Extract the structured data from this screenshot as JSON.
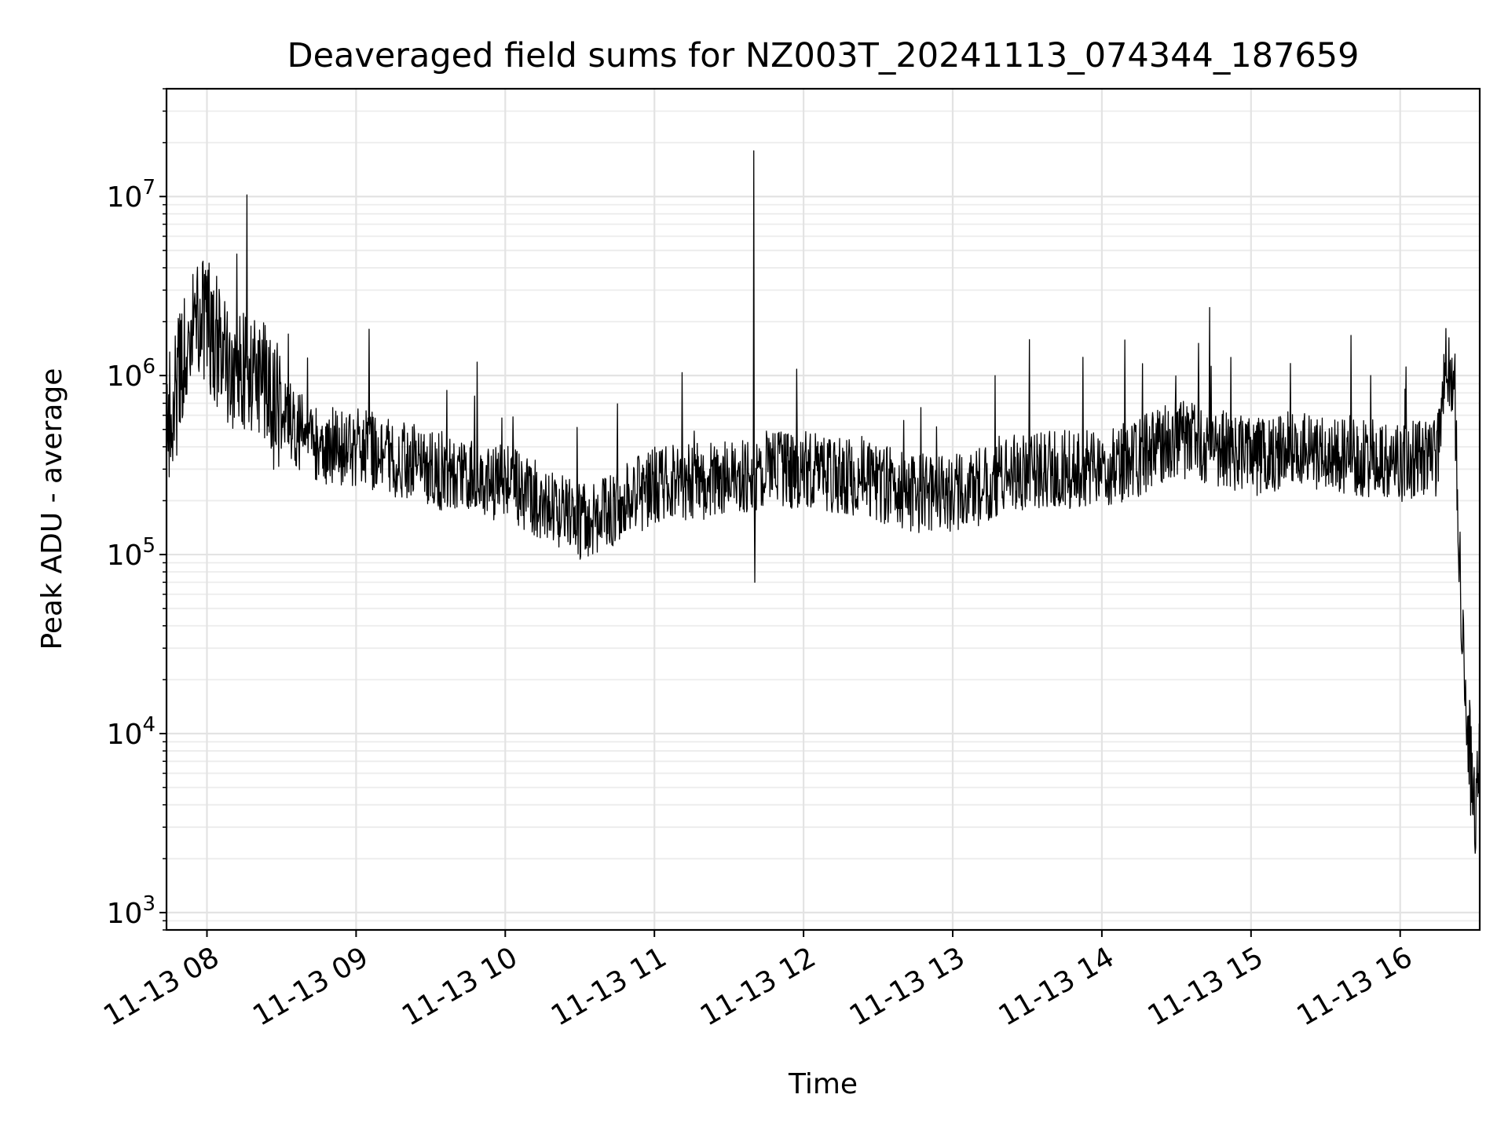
{
  "chart_data": {
    "type": "line",
    "title": "Deaveraged field sums for NZ003T_20241113_074344_187659",
    "xlabel": "Time",
    "ylabel": "Peak ADU - average",
    "y_scale": "log",
    "ylim": [
      800,
      40000000
    ],
    "xlim": [
      "2024-11-13 07:43:44",
      "2024-11-13 16:32:00"
    ],
    "grid": true,
    "line_color": "#000000",
    "x_ticks": [
      {
        "value": "2024-11-13 08:00",
        "label": "11-13 08"
      },
      {
        "value": "2024-11-13 09:00",
        "label": "11-13 09"
      },
      {
        "value": "2024-11-13 10:00",
        "label": "11-13 10"
      },
      {
        "value": "2024-11-13 11:00",
        "label": "11-13 11"
      },
      {
        "value": "2024-11-13 12:00",
        "label": "11-13 12"
      },
      {
        "value": "2024-11-13 13:00",
        "label": "11-13 13"
      },
      {
        "value": "2024-11-13 14:00",
        "label": "11-13 14"
      },
      {
        "value": "2024-11-13 15:00",
        "label": "11-13 15"
      },
      {
        "value": "2024-11-13 16:00",
        "label": "11-13 16"
      }
    ],
    "y_ticks": [
      {
        "value": 1000,
        "base": "10",
        "exp": "3"
      },
      {
        "value": 10000,
        "base": "10",
        "exp": "4"
      },
      {
        "value": 100000,
        "base": "10",
        "exp": "5"
      },
      {
        "value": 1000000,
        "base": "10",
        "exp": "6"
      },
      {
        "value": 10000000,
        "base": "10",
        "exp": "7"
      }
    ],
    "series": [
      {
        "x": [
          "2024-11-13 07:44",
          "2024-11-13 07:50",
          "2024-11-13 07:55",
          "2024-11-13 08:00",
          "2024-11-13 08:05",
          "2024-11-13 08:10",
          "2024-11-13 08:15",
          "2024-11-13 08:20",
          "2024-11-13 08:30",
          "2024-11-13 08:40",
          "2024-11-13 08:50",
          "2024-11-13 09:00",
          "2024-11-13 09:15",
          "2024-11-13 09:30",
          "2024-11-13 09:45",
          "2024-11-13 10:00",
          "2024-11-13 10:15",
          "2024-11-13 10:30",
          "2024-11-13 10:45",
          "2024-11-13 11:00",
          "2024-11-13 11:15",
          "2024-11-13 11:30",
          "2024-11-13 11:40",
          "2024-11-13 11:45",
          "2024-11-13 12:00",
          "2024-11-13 12:15",
          "2024-11-13 12:30",
          "2024-11-13 12:45",
          "2024-11-13 13:00",
          "2024-11-13 13:15",
          "2024-11-13 13:30",
          "2024-11-13 13:45",
          "2024-11-13 14:00",
          "2024-11-13 14:15",
          "2024-11-13 14:30",
          "2024-11-13 14:45",
          "2024-11-13 15:00",
          "2024-11-13 15:15",
          "2024-11-13 15:30",
          "2024-11-13 15:45",
          "2024-11-13 16:00",
          "2024-11-13 16:10",
          "2024-11-13 16:15",
          "2024-11-13 16:18",
          "2024-11-13 16:22",
          "2024-11-13 16:24",
          "2024-11-13 16:26",
          "2024-11-13 16:28",
          "2024-11-13 16:30",
          "2024-11-13 16:32"
        ],
        "y": [
          600000,
          1000000,
          2500000,
          2000000,
          1500000,
          800000,
          1200000,
          1000000,
          600000,
          450000,
          400000,
          400000,
          350000,
          300000,
          280000,
          250000,
          200000,
          150000,
          180000,
          250000,
          250000,
          280000,
          250000,
          300000,
          300000,
          280000,
          250000,
          220000,
          220000,
          250000,
          300000,
          300000,
          300000,
          350000,
          450000,
          400000,
          350000,
          380000,
          380000,
          350000,
          320000,
          350000,
          350000,
          1200000,
          900000,
          100000,
          20000,
          8000,
          3000,
          6000
        ]
      }
    ]
  }
}
